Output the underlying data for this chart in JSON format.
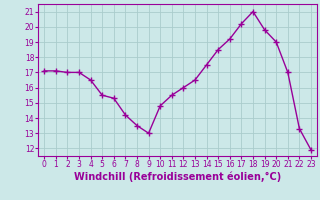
{
  "x": [
    0,
    1,
    2,
    3,
    4,
    5,
    6,
    7,
    8,
    9,
    10,
    11,
    12,
    13,
    14,
    15,
    16,
    17,
    18,
    19,
    20,
    21,
    22,
    23
  ],
  "y": [
    17.1,
    17.1,
    17.0,
    17.0,
    16.5,
    15.5,
    15.3,
    14.2,
    13.5,
    13.0,
    14.8,
    15.5,
    16.0,
    16.5,
    17.5,
    18.5,
    19.2,
    20.2,
    21.0,
    19.8,
    19.0,
    17.0,
    13.3,
    11.9
  ],
  "line_color": "#990099",
  "marker": "+",
  "marker_size": 4.0,
  "line_width": 1.0,
  "bg_color": "#cce8e8",
  "grid_color": "#aacccc",
  "xlabel": "Windchill (Refroidissement éolien,°C)",
  "xlabel_color": "#990099",
  "tick_color": "#990099",
  "xlim": [
    -0.5,
    23.5
  ],
  "ylim": [
    11.5,
    21.5
  ],
  "yticks": [
    12,
    13,
    14,
    15,
    16,
    17,
    18,
    19,
    20,
    21
  ],
  "xticks": [
    0,
    1,
    2,
    3,
    4,
    5,
    6,
    7,
    8,
    9,
    10,
    11,
    12,
    13,
    14,
    15,
    16,
    17,
    18,
    19,
    20,
    21,
    22,
    23
  ],
  "tick_fontsize": 5.5,
  "xlabel_fontsize": 7.0,
  "spine_color": "#990099"
}
